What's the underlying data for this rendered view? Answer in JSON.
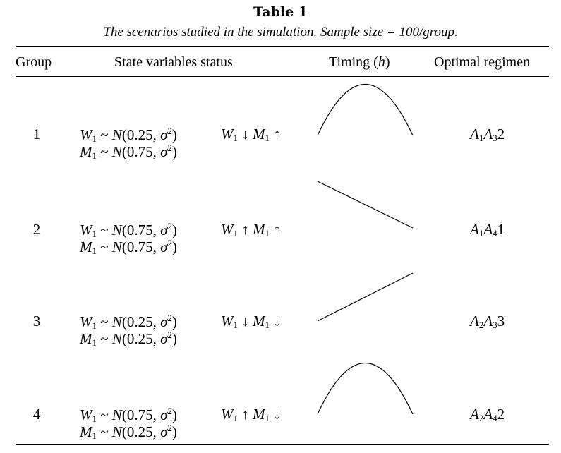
{
  "table": {
    "title": "Table 1",
    "caption": "The scenarios studied in the simulation. Sample size = 100/group.",
    "headers": {
      "group": "Group",
      "state": "State variables status",
      "timing_prefix": "Timing (",
      "timing_var": "h",
      "timing_suffix": ")",
      "regimen": "Optimal regimen"
    },
    "rows": [
      {
        "group": "1",
        "w_mean": "0.25",
        "m_mean": "0.75",
        "w_dir": "↓",
        "m_dir": "↑",
        "timing_shape": "hump",
        "regimen": {
          "a": "A",
          "a_sub": "1",
          "b": "A",
          "b_sub": "3",
          "suffix": "2"
        }
      },
      {
        "group": "2",
        "w_mean": "0.75",
        "m_mean": "0.75",
        "w_dir": "↑",
        "m_dir": "↑",
        "timing_shape": "decreasing",
        "regimen": {
          "a": "A",
          "a_sub": "1",
          "b": "A",
          "b_sub": "4",
          "suffix": "1"
        }
      },
      {
        "group": "3",
        "w_mean": "0.25",
        "m_mean": "0.25",
        "w_dir": "↓",
        "m_dir": "↓",
        "timing_shape": "increasing",
        "regimen": {
          "a": "A",
          "a_sub": "2",
          "b": "A",
          "b_sub": "3",
          "suffix": "3"
        }
      },
      {
        "group": "4",
        "w_mean": "0.75",
        "m_mean": "0.25",
        "w_dir": "↑",
        "m_dir": "↓",
        "timing_shape": "hump",
        "regimen": {
          "a": "A",
          "a_sub": "2",
          "b": "A",
          "b_sub": "4",
          "suffix": "2"
        }
      }
    ]
  }
}
